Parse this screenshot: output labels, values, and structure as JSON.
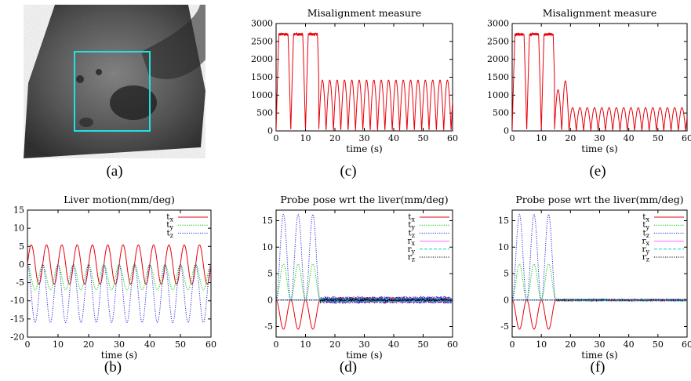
{
  "colors": {
    "tx": "#e8000b",
    "ty": "#00cc00",
    "tz": "#2b2bd6",
    "rx": "#ff66ff",
    "ry": "#00d0d0",
    "rz": "#000000",
    "roi": "#22e0e0"
  },
  "panel_labels": {
    "a": "(a)",
    "b": "(b)",
    "c": "(c)",
    "d": "(d)",
    "e": "(e)",
    "f": "(f)"
  },
  "image_a": {
    "icon": "ultrasound-liver-image"
  },
  "chart_data": [
    {
      "id": "b",
      "type": "line",
      "title": "Liver motion(mm/deg)",
      "xlabel": "time (s)",
      "ylabel": "",
      "xlim": [
        0,
        60
      ],
      "ylim": [
        -20,
        15
      ],
      "xticks": [
        0,
        10,
        20,
        30,
        40,
        50,
        60
      ],
      "yticks": [
        -20,
        -15,
        -10,
        -5,
        0,
        5,
        10,
        15
      ],
      "legend_position": "top-right",
      "series": [
        {
          "name": "t_x",
          "label_main": "t",
          "label_sub": "x",
          "color_key": "tx",
          "style": "solid",
          "model": {
            "kind": "sine",
            "amplitude": 5.4,
            "period": 5,
            "offset": 0
          }
        },
        {
          "name": "t_y",
          "label_main": "t",
          "label_sub": "y",
          "color_key": "ty",
          "style": "dotted",
          "model": {
            "kind": "neg_half_cos",
            "amplitude": 7,
            "period": 5
          }
        },
        {
          "name": "t_z",
          "label_main": "t",
          "label_sub": "z",
          "color_key": "tz",
          "style": "dotted",
          "model": {
            "kind": "neg_half_cos",
            "amplitude": 16,
            "period": 5
          }
        }
      ]
    },
    {
      "id": "c",
      "type": "line",
      "title": "Misalignment measure",
      "xlabel": "time (s)",
      "ylabel": "",
      "xlim": [
        0,
        60
      ],
      "ylim": [
        0,
        3000
      ],
      "xticks": [
        0,
        10,
        20,
        30,
        40,
        50,
        60
      ],
      "yticks": [
        0,
        500,
        1000,
        1500,
        2000,
        2500,
        3000
      ],
      "series": [
        {
          "name": "",
          "color_key": "tx",
          "style": "solid",
          "model": {
            "kind": "misalignment",
            "peak_initial": 2700,
            "switch_time": 14.5,
            "peak_after": 1420,
            "period_after": 2.5
          }
        }
      ]
    },
    {
      "id": "e",
      "type": "line",
      "title": "Misalignment measure",
      "xlabel": "time (s)",
      "ylabel": "",
      "xlim": [
        0,
        60
      ],
      "ylim": [
        0,
        3000
      ],
      "xticks": [
        0,
        10,
        20,
        30,
        40,
        50,
        60
      ],
      "yticks": [
        0,
        500,
        1000,
        1500,
        2000,
        2500,
        3000
      ],
      "series": [
        {
          "name": "",
          "color_key": "tx",
          "style": "solid",
          "model": {
            "kind": "misalignment_decay",
            "peak_initial": 2700,
            "switch_time": 14.5,
            "peaks_transition": [
              1150,
              1400
            ],
            "peak_after": 650,
            "period_after": 2.5
          }
        }
      ]
    },
    {
      "id": "d",
      "type": "line",
      "title": "Probe pose wrt the liver(mm/deg)",
      "xlabel": "time (s)",
      "ylabel": "",
      "xlim": [
        0,
        60
      ],
      "ylim": [
        -7,
        17
      ],
      "xticks": [
        0,
        10,
        20,
        30,
        40,
        50,
        60
      ],
      "yticks": [
        -5,
        0,
        5,
        10,
        15
      ],
      "legend_position": "top-right",
      "series": [
        {
          "name": "t_x",
          "label_main": "t",
          "label_sub": "x",
          "color_key": "tx",
          "style": "solid",
          "model": {
            "kind": "probe",
            "amplitude": -5.5,
            "noise": 0.5
          }
        },
        {
          "name": "t_y",
          "label_main": "t",
          "label_sub": "y",
          "color_key": "ty",
          "style": "dotted",
          "model": {
            "kind": "probe",
            "amplitude": 6.8,
            "noise": 0.4
          }
        },
        {
          "name": "t_z",
          "label_main": "t",
          "label_sub": "z",
          "color_key": "tz",
          "style": "dotted",
          "model": {
            "kind": "probe",
            "amplitude": 16.2,
            "noise": 0.7
          }
        },
        {
          "name": "r_x",
          "label_main": "r",
          "label_sub": "x",
          "color_key": "rx",
          "style": "solid",
          "model": {
            "kind": "flat",
            "noise": 0.3
          }
        },
        {
          "name": "r_y",
          "label_main": "r",
          "label_sub": "y",
          "color_key": "ry",
          "style": "dashed",
          "model": {
            "kind": "flat",
            "noise": 0.3
          }
        },
        {
          "name": "r_z",
          "label_main": "r",
          "label_sub": "z",
          "color_key": "rz",
          "style": "dotted",
          "model": {
            "kind": "flat",
            "noise": 0.2
          }
        }
      ]
    },
    {
      "id": "f",
      "type": "line",
      "title": "Probe pose wrt the liver(mm/deg)",
      "xlabel": "time (s)",
      "ylabel": "",
      "xlim": [
        0,
        60
      ],
      "ylim": [
        -7,
        17
      ],
      "xticks": [
        0,
        10,
        20,
        30,
        40,
        50,
        60
      ],
      "yticks": [
        -5,
        0,
        5,
        10,
        15
      ],
      "legend_position": "top-right",
      "series": [
        {
          "name": "t_x",
          "label_main": "t",
          "label_sub": "x",
          "color_key": "tx",
          "style": "solid",
          "model": {
            "kind": "probe",
            "amplitude": -5.5,
            "noise": 0.12
          }
        },
        {
          "name": "t_y",
          "label_main": "t",
          "label_sub": "y",
          "color_key": "ty",
          "style": "dotted",
          "model": {
            "kind": "probe",
            "amplitude": 6.8,
            "noise": 0.1
          }
        },
        {
          "name": "t_z",
          "label_main": "t",
          "label_sub": "z",
          "color_key": "tz",
          "style": "dotted",
          "model": {
            "kind": "probe",
            "amplitude": 16.2,
            "noise": 0.15
          }
        },
        {
          "name": "r_x",
          "label_main": "r",
          "label_sub": "x",
          "color_key": "rx",
          "style": "solid",
          "model": {
            "kind": "flat",
            "noise": 0.08
          }
        },
        {
          "name": "r_y",
          "label_main": "r",
          "label_sub": "y",
          "color_key": "ry",
          "style": "dashed",
          "model": {
            "kind": "flat",
            "noise": 0.08
          }
        },
        {
          "name": "r_z",
          "label_main": "r",
          "label_sub": "z",
          "color_key": "rz",
          "style": "dotted",
          "model": {
            "kind": "flat",
            "noise": 0.05
          }
        }
      ]
    }
  ]
}
